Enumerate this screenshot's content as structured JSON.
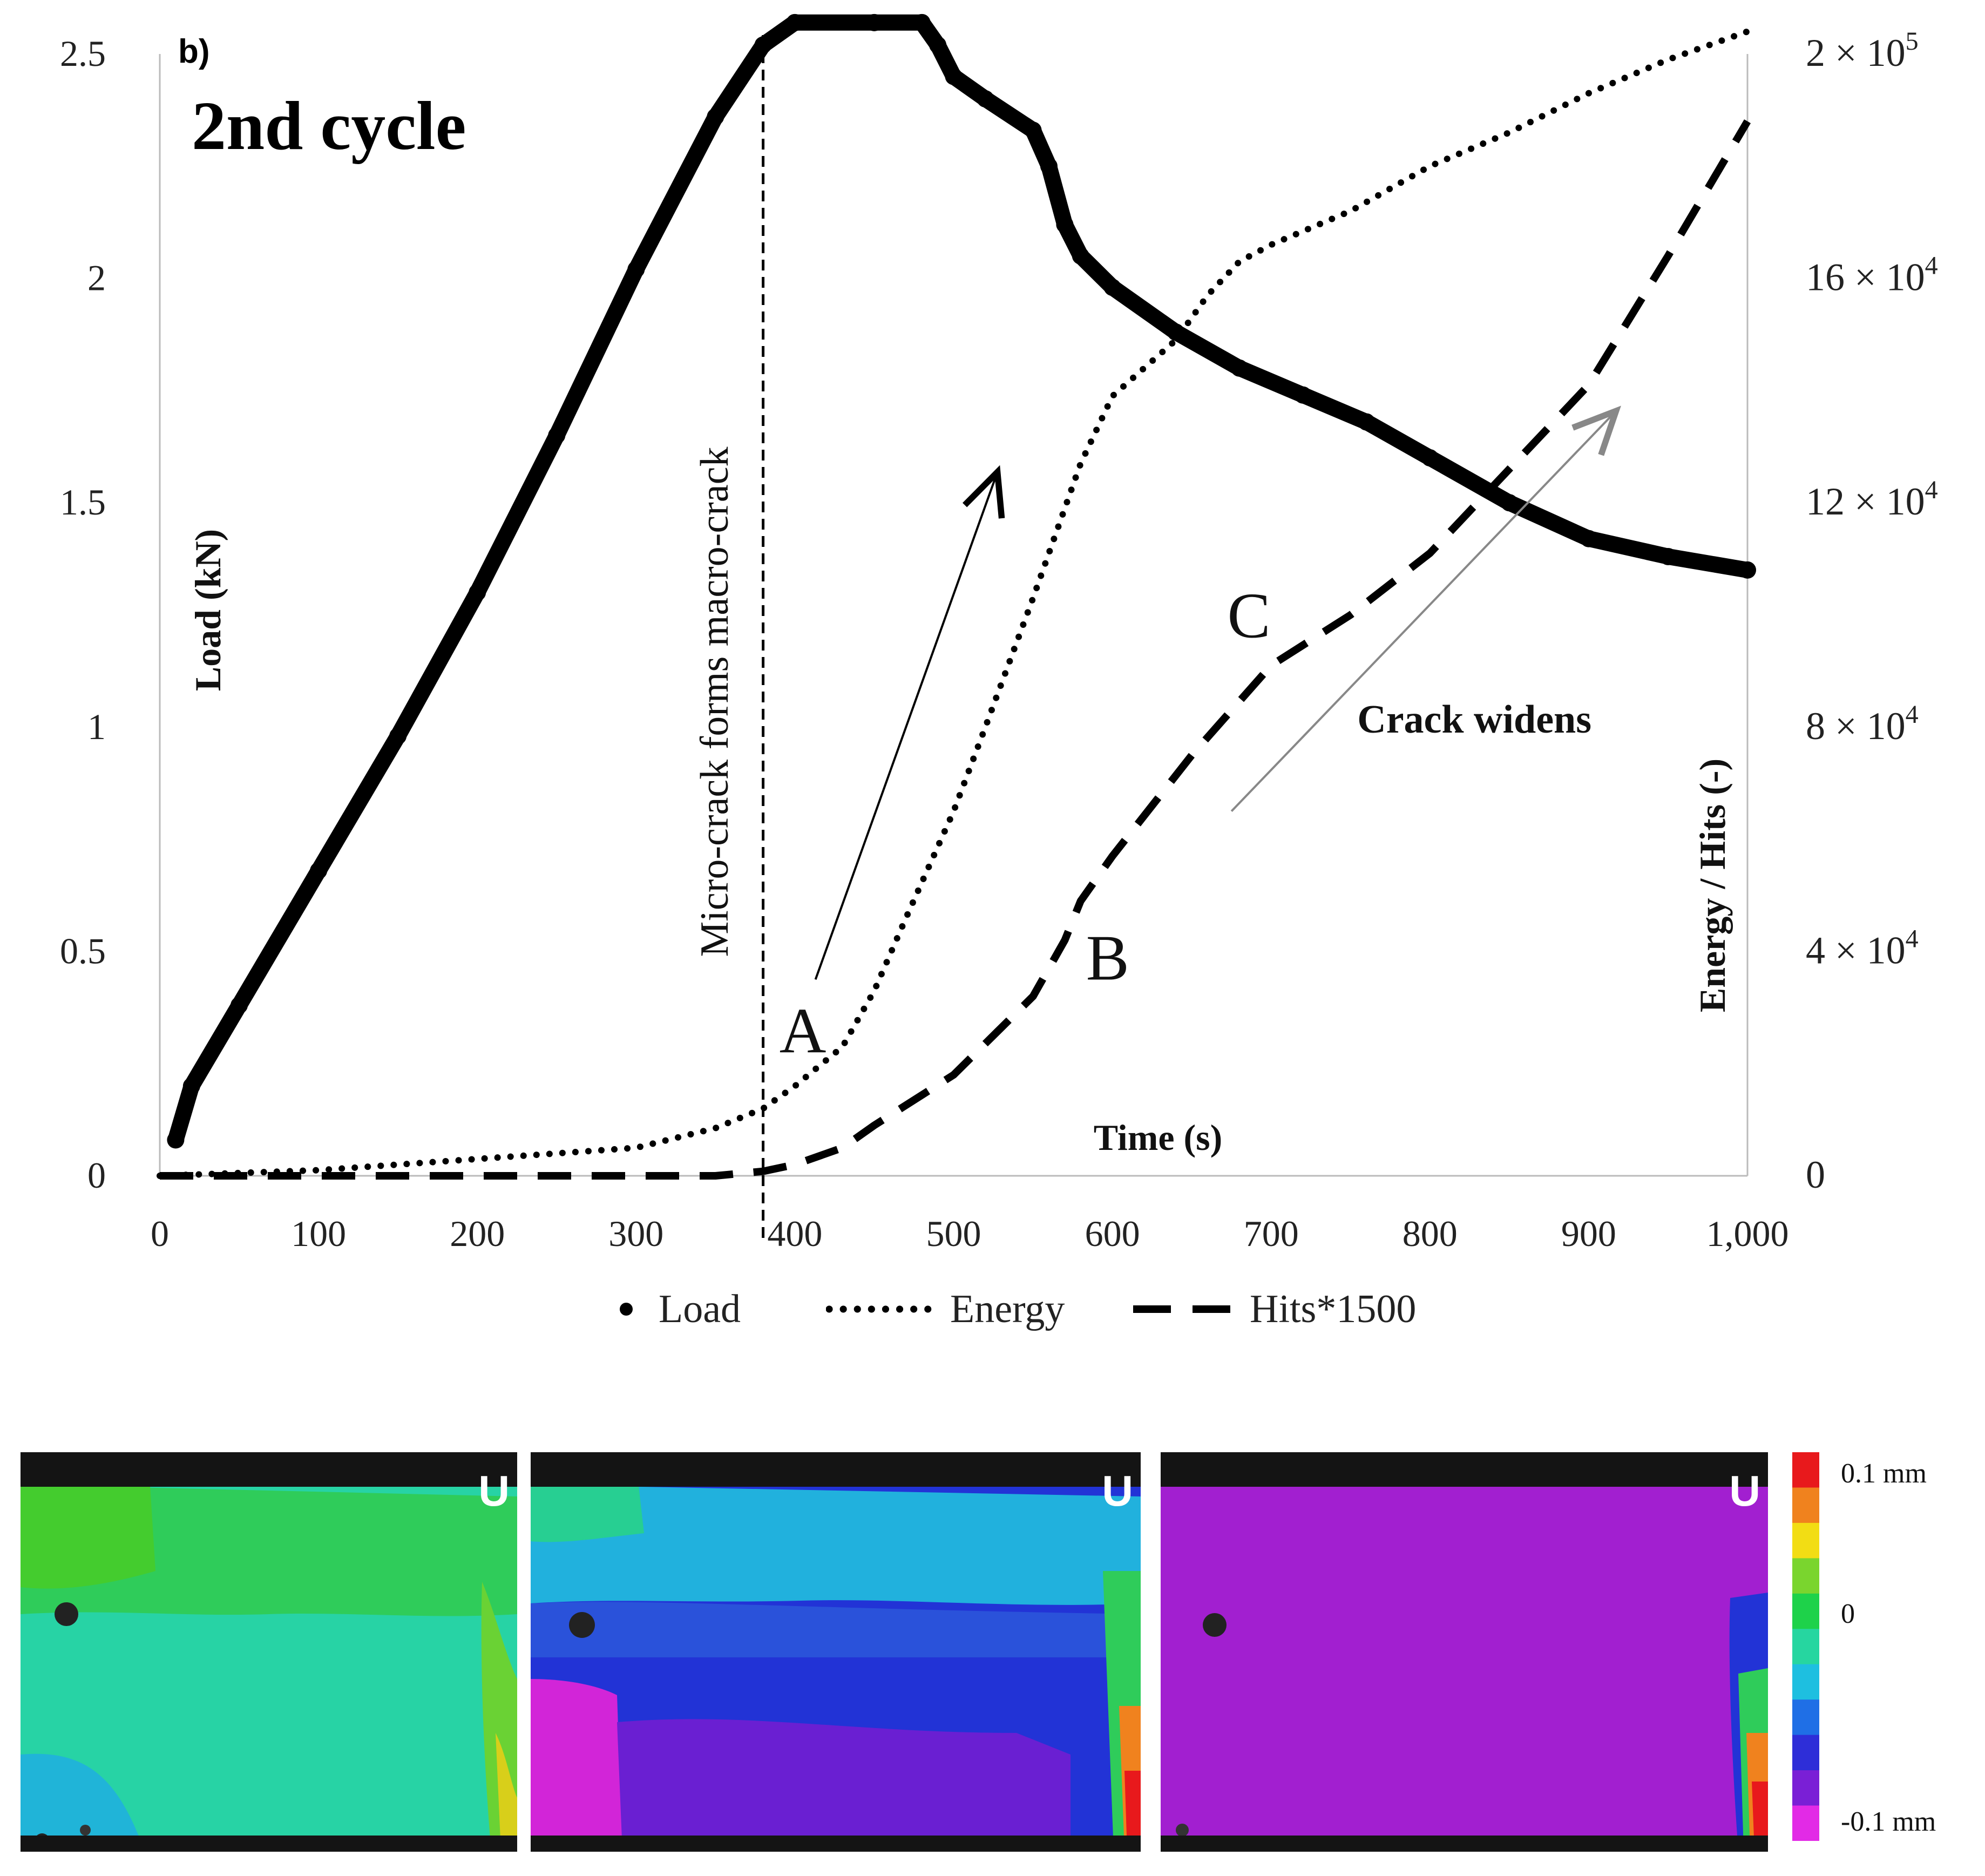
{
  "panel_label": "b)",
  "cycle_title": "2nd cycle",
  "chart_data": {
    "type": "line",
    "title": "2nd cycle",
    "xlabel": "Time (s)",
    "ylabel_left": "Load (kN)",
    "ylabel_right": "Energy / Hits (-)",
    "xlim": [
      0,
      1000
    ],
    "ylim_left": [
      0,
      2.5
    ],
    "ylim_right": [
      0,
      200000
    ],
    "x_ticks": [
      "0",
      "100",
      "200",
      "300",
      "400",
      "500",
      "600",
      "700",
      "800",
      "900",
      "1,000"
    ],
    "y_left_ticks": [
      "0",
      "0.5",
      "1",
      "1.5",
      "2",
      "2.5"
    ],
    "y_right_ticks": [
      {
        "mantissa": "0",
        "exp": ""
      },
      {
        "mantissa": "4 × 10",
        "exp": "4"
      },
      {
        "mantissa": "8 × 10",
        "exp": "4"
      },
      {
        "mantissa": "12 × 10",
        "exp": "4"
      },
      {
        "mantissa": "16 × 10",
        "exp": "4"
      },
      {
        "mantissa": "2 × 10",
        "exp": "5"
      }
    ],
    "series": [
      {
        "name": "Load",
        "axis": "left",
        "style": "markers",
        "x": [
          10,
          20,
          50,
          100,
          150,
          200,
          250,
          300,
          350,
          380,
          400,
          450,
          480,
          490,
          500,
          520,
          550,
          560,
          570,
          580,
          600,
          640,
          680,
          720,
          760,
          800,
          850,
          900,
          950,
          1000
        ],
        "values": [
          0.08,
          0.2,
          0.38,
          0.68,
          0.98,
          1.3,
          1.65,
          2.02,
          2.36,
          2.52,
          2.57,
          2.57,
          2.57,
          2.52,
          2.45,
          2.4,
          2.33,
          2.25,
          2.12,
          2.05,
          1.98,
          1.88,
          1.8,
          1.74,
          1.68,
          1.6,
          1.5,
          1.42,
          1.38,
          1.35
        ]
      },
      {
        "name": "Energy",
        "axis": "right",
        "style": "dotted",
        "x": [
          0,
          100,
          200,
          300,
          350,
          380,
          400,
          430,
          450,
          470,
          500,
          520,
          550,
          580,
          600,
          640,
          660,
          680,
          700,
          750,
          800,
          850,
          900,
          950,
          1000
        ],
        "values": [
          0,
          1000,
          3000,
          5000,
          8500,
          12000,
          16000,
          23000,
          33000,
          46000,
          65000,
          80000,
          103000,
          127000,
          139000,
          149000,
          157000,
          163000,
          166000,
          172000,
          180000,
          186000,
          193000,
          199000,
          204000
        ]
      },
      {
        "name": "Hits*1500",
        "axis": "right",
        "style": "dashed",
        "x": [
          0,
          100,
          200,
          300,
          350,
          380,
          400,
          430,
          450,
          500,
          550,
          570,
          580,
          600,
          650,
          700,
          750,
          800,
          850,
          900,
          950,
          1000
        ],
        "values": [
          0,
          0,
          0,
          0,
          0,
          800,
          2000,
          5000,
          9000,
          18000,
          32000,
          42000,
          49000,
          57000,
          75000,
          91000,
          100000,
          111000,
          126000,
          141000,
          164000,
          188000
        ]
      }
    ],
    "legend": [
      "Load",
      "Energy",
      "Hits*1500"
    ],
    "vline": {
      "x": 380,
      "label": "Micro-crack forms macro-crack"
    },
    "annotations": [
      {
        "text": "A",
        "x": 405,
        "y_right": 22000
      },
      {
        "text": "B",
        "x": 597,
        "y_right": 35000
      },
      {
        "text": "C",
        "x": 686,
        "y_right": 96000
      },
      {
        "text": "Crack widens",
        "x": 828,
        "y_right": 79000
      }
    ],
    "arrows": [
      {
        "from": [
          413,
          35000
        ],
        "to": [
          527,
          125000
        ],
        "color": "#000000"
      },
      {
        "from": [
          675,
          65000
        ],
        "to": [
          916,
          136000
        ],
        "color": "#888888"
      }
    ]
  },
  "dic": {
    "panel_marker": "U",
    "colorbar_labels": [
      "0.1 mm",
      "0",
      "-0.1 mm"
    ],
    "colorbar_colors": [
      "#e8191c",
      "#f0821e",
      "#f2dd14",
      "#7ad52e",
      "#1ed24a",
      "#26d6a0",
      "#1ebfe0",
      "#1f6fe6",
      "#2e2ed8",
      "#7a1fd6",
      "#e22ae6"
    ]
  }
}
